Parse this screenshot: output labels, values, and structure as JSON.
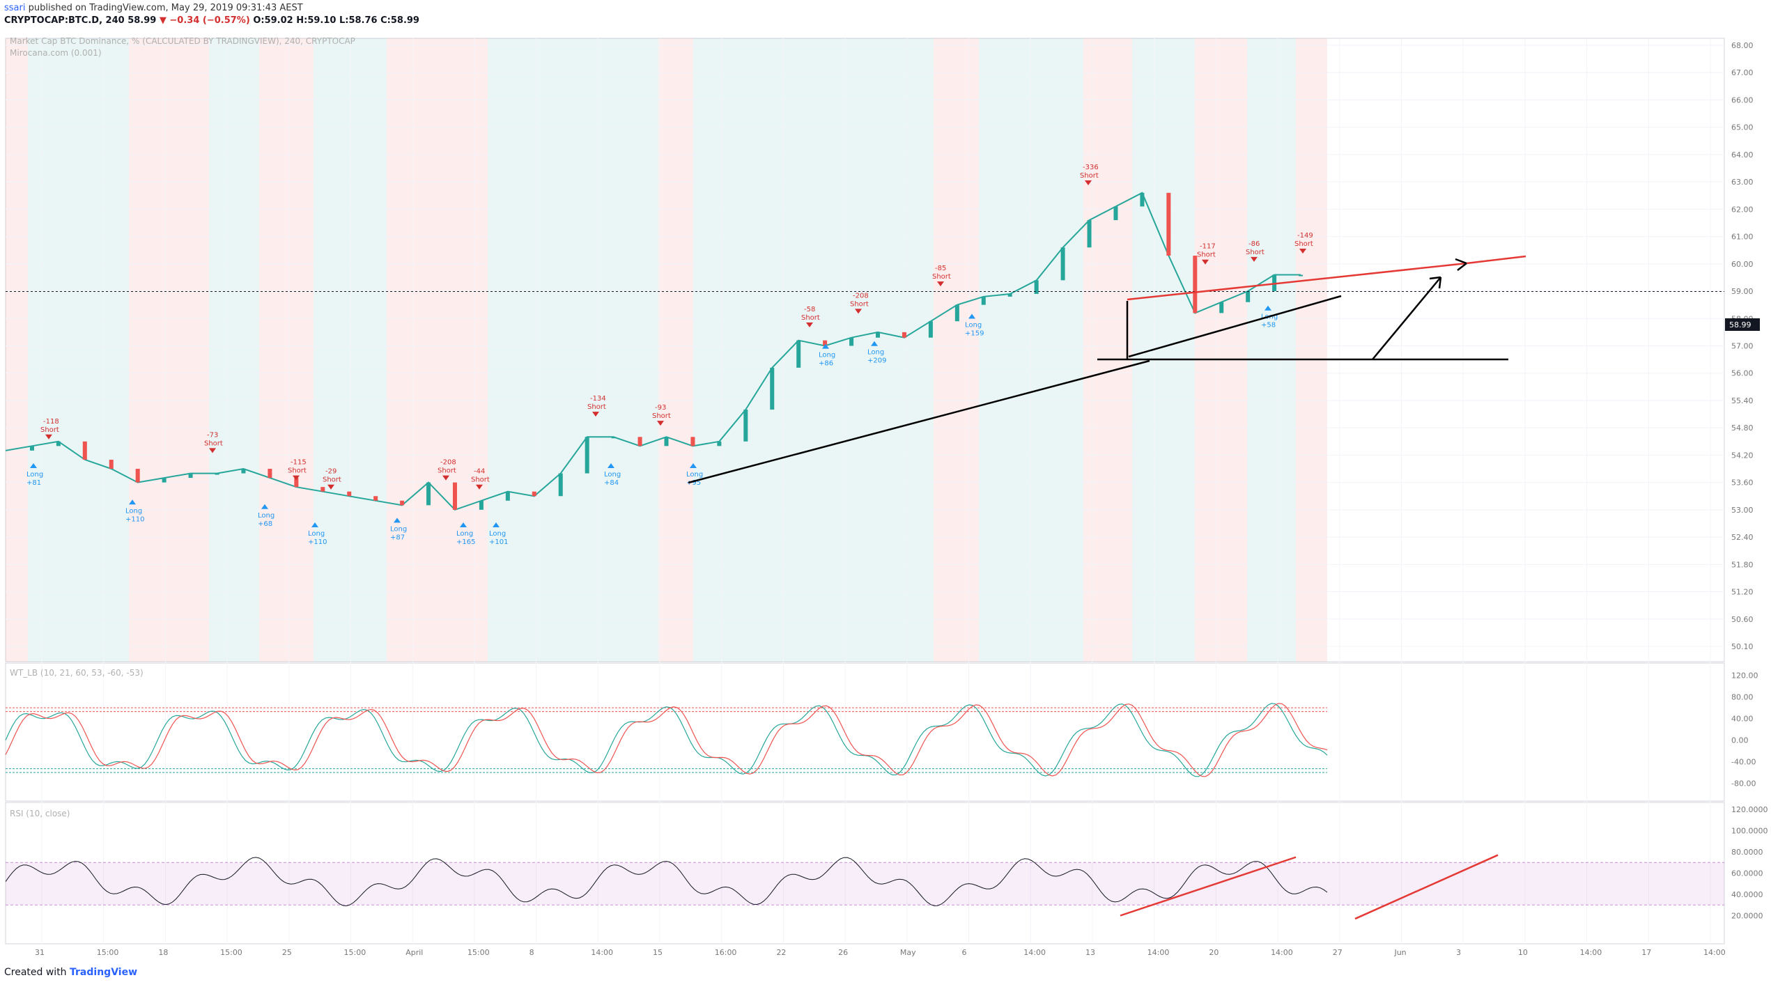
{
  "header": {
    "user": "ssari",
    "published": "published on TradingView.com, May 29, 2019 09:31:43 AEST",
    "symbol": "CRYPTOCAP:BTC.D, 240",
    "last": "58.99",
    "change": "−0.34 (−0.57%)",
    "o_label": "O:",
    "o": "59.02",
    "h_label": "H:",
    "h": "59.10",
    "l_label": "L:",
    "l": "58.76",
    "c_label": "C:",
    "c": "58.99"
  },
  "footer": {
    "created_with": "Created with",
    "brand": "TradingView"
  },
  "main_pane": {
    "title": "Market Cap BTC Dominance, % (CALCULATED BY TRADINGVIEW), 240, CRYPTOCAP",
    "subtitle": "Mirocana.com (0.001)",
    "price_badge": "58.99"
  },
  "wt_pane": {
    "title": "WT_LB (10, 21, 60, 53, -60, -53)"
  },
  "rsi_pane": {
    "title": "RSI (10, close)"
  },
  "chart_data": [
    {
      "type": "line",
      "title": "Market Cap BTC Dominance, % (CALCULATED BY TRADINGVIEW), 240, CRYPTOCAP",
      "y_ticks": [
        "68.00",
        "67.00",
        "66.00",
        "65.00",
        "64.00",
        "63.00",
        "62.00",
        "61.00",
        "60.00",
        "59.00",
        "58.00",
        "57.00",
        "56.00",
        "55.40",
        "54.80",
        "54.20",
        "53.60",
        "53.00",
        "52.40",
        "51.80",
        "51.20",
        "50.60",
        "50.10"
      ],
      "ylim": [
        50.1,
        68.0
      ],
      "x_ticks": [
        "31",
        "15:00",
        "18",
        "15:00",
        "25",
        "15:00",
        "April",
        "15:00",
        "8",
        "14:00",
        "15",
        "16:00",
        "22",
        "26",
        "May",
        "6",
        "14:00",
        "13",
        "14:00",
        "20",
        "14:00",
        "27",
        "Jun",
        "3",
        "10",
        "14:00",
        "17",
        "14:00"
      ],
      "series": [
        {
          "name": "",
          "x": [
            0,
            4,
            8,
            12,
            16,
            20,
            24,
            28,
            32,
            36,
            40,
            44,
            48,
            52,
            56,
            60,
            64,
            68,
            72,
            76,
            80,
            84,
            88,
            92,
            96,
            100,
            104,
            108,
            112,
            116,
            120,
            124,
            128,
            132,
            136,
            140,
            144,
            148,
            152,
            156,
            160,
            164,
            168,
            172,
            176,
            180,
            184,
            188,
            192,
            196
          ],
          "values": [
            54.3,
            54.4,
            54.5,
            54.1,
            53.9,
            53.6,
            53.7,
            53.8,
            53.8,
            53.9,
            53.7,
            53.5,
            53.4,
            53.3,
            53.2,
            53.1,
            53.6,
            53.0,
            53.2,
            53.4,
            53.3,
            53.8,
            54.6,
            54.6,
            54.4,
            54.6,
            54.4,
            54.5,
            55.2,
            56.2,
            57.2,
            57.0,
            57.3,
            57.5,
            57.3,
            57.9,
            58.5,
            58.8,
            58.9,
            59.4,
            60.6,
            61.6,
            62.1,
            62.6,
            60.3,
            58.2,
            58.6,
            59.0,
            59.6,
            59.6
          ]
        }
      ],
      "signals": {
        "short": [
          {
            "label": "Short",
            "value": "-118"
          },
          {
            "label": "Short",
            "value": "-73"
          },
          {
            "label": "Short",
            "value": "-115"
          },
          {
            "label": "Short",
            "value": "-29"
          },
          {
            "label": "Short",
            "value": "-208"
          },
          {
            "label": "Short",
            "value": "-44"
          },
          {
            "label": "Short",
            "value": "-134"
          },
          {
            "label": "Short",
            "value": "-93"
          },
          {
            "label": "Short",
            "value": "-58"
          },
          {
            "label": "Short",
            "value": "-208"
          },
          {
            "label": "Short",
            "value": "-85"
          },
          {
            "label": "Short",
            "value": "-336"
          },
          {
            "label": "Short",
            "value": "-117"
          },
          {
            "label": "Short",
            "value": "-86"
          },
          {
            "label": "Short",
            "value": "-149"
          }
        ],
        "long": [
          {
            "label": "Long",
            "value": "+81"
          },
          {
            "label": "Long",
            "value": "+110"
          },
          {
            "label": "Long",
            "value": "+68"
          },
          {
            "label": "Long",
            "value": "+110"
          },
          {
            "label": "Long",
            "value": "+87"
          },
          {
            "label": "Long",
            "value": "+165"
          },
          {
            "label": "Long",
            "value": "+101"
          },
          {
            "label": "Long",
            "value": "+84"
          },
          {
            "label": "Long",
            "value": "+95"
          },
          {
            "label": "Long",
            "value": "+86"
          },
          {
            "label": "Long",
            "value": "+209"
          },
          {
            "label": "Long",
            "value": "+159"
          },
          {
            "label": "Long",
            "value": "+58"
          }
        ]
      }
    },
    {
      "type": "line",
      "title": "WT_LB (10, 21, 60, 53, -60, -53)",
      "y_ticks": [
        "120.00",
        "80.00",
        "40.00",
        "0.00",
        "-40.00",
        "-80.00"
      ],
      "ylim": [
        -100,
        130
      ],
      "levels": [
        60,
        53,
        -53,
        -60
      ]
    },
    {
      "type": "line",
      "title": "RSI (10, close)",
      "y_ticks": [
        "120.0000",
        "100.0000",
        "80.0000",
        "60.0000",
        "40.0000",
        "20.0000"
      ],
      "ylim": [
        0,
        120
      ],
      "band": [
        30,
        70
      ]
    }
  ],
  "colors": {
    "up": "#26a69a",
    "down": "#ef5350",
    "short": "#d32f2f",
    "long": "#2196f3",
    "trend": "#000000",
    "trend_red": "#e53935"
  }
}
